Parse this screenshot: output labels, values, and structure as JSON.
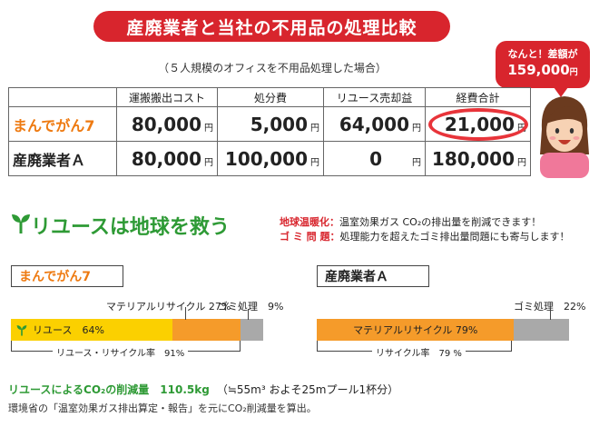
{
  "title": "産廃業者と当社の不用品の処理比較",
  "subtitle": "（５人規模のオフィスを不用品処理した場合）",
  "callout": {
    "line1": "なんと！差額が",
    "line2": "159,000",
    "unit": "円"
  },
  "table": {
    "headers": [
      "",
      "運搬搬出コスト",
      "処分費",
      "リユース売却益",
      "経費合計"
    ],
    "rows": [
      {
        "name": "まんでがん7",
        "values": [
          "80,000",
          "5,000",
          "64,000",
          "21,000"
        ]
      },
      {
        "name": "産廃業者Ａ",
        "values": [
          "80,000",
          "100,000",
          "0",
          "180,000"
        ]
      }
    ],
    "unit": "円"
  },
  "reuse": {
    "title": "リユースは地球を救う",
    "note1_key": "地球温暖化：",
    "note1_text": "温室効果ガス CO₂の排出量を削減できます！",
    "note2_key": "ゴ ミ 問 題：",
    "note2_text": "処理能力を超えたゴミ排出量問題にも寄与します！"
  },
  "compare_left": {
    "label": "まんでがん7",
    "material": "マテリアルリサイクル 27%",
    "garbage": "ゴミ処理　9%",
    "reuse": "リユース　64%",
    "rate": "リユース・リサイクル率　91%",
    "shares": {
      "reuse": 64,
      "material": 27,
      "garbage": 9
    }
  },
  "compare_right": {
    "label": "産廃業者Ａ",
    "garbage": "ゴミ処理　22%",
    "material": "マテリアルリサイクル 79%",
    "rate": "リサイクル率　79 %",
    "shares": {
      "material": 79,
      "garbage": 22
    }
  },
  "co2": {
    "label": "リユースによるCO₂の削減量　110.5kg",
    "note": "（≒55m³ およそ25mプール1杯分）"
  },
  "footnote": "環境省の「温室効果ガス排出算定・報告」を元にCO₂削減量を算出。",
  "colors": {
    "red": "#d8252d",
    "orange": "#ee7a11",
    "green": "#2e9a35",
    "yellow": "#fbd000",
    "bar_orange": "#f59b2a",
    "gray": "#a9a9a9"
  }
}
